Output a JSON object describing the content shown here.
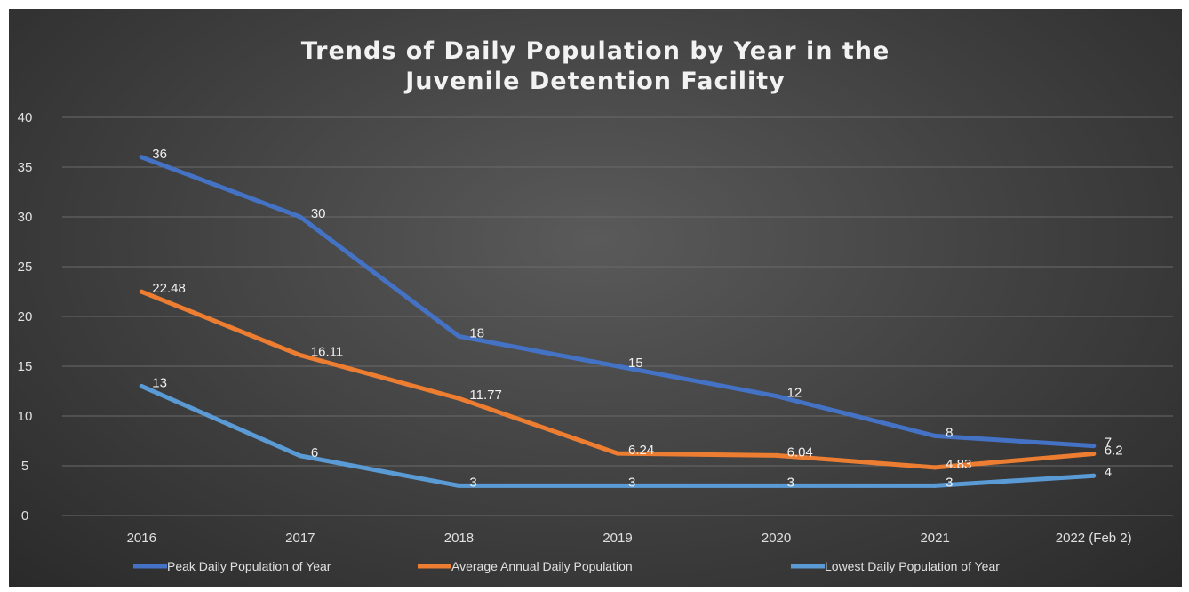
{
  "chart_data": {
    "type": "line",
    "title": "Trends of Daily Population by Year in the Juvenile Detention Facility",
    "title_lines": [
      "Trends of Daily Population by Year in the",
      "Juvenile Detention Facility"
    ],
    "categories": [
      "2016",
      "2017",
      "2018",
      "2019",
      "2020",
      "2021",
      "2022 (Feb 2)"
    ],
    "yticks": [
      "0",
      "5",
      "10",
      "15",
      "20",
      "25",
      "30",
      "35",
      "40"
    ],
    "ylim": [
      0,
      40
    ],
    "grid": true,
    "legend_position": "bottom",
    "series": [
      {
        "name": "Peak Daily Population of Year",
        "color": "#4472c4",
        "values": [
          36,
          30,
          18,
          15,
          12,
          8,
          7
        ],
        "labels": [
          "36",
          "30",
          "18",
          "15",
          "12",
          "8",
          "7"
        ]
      },
      {
        "name": "Average Annual Daily Population",
        "color": "#ed7d31",
        "values": [
          22.48,
          16.11,
          11.77,
          6.24,
          6.04,
          4.83,
          6.2
        ],
        "labels": [
          "22.48",
          "16.11",
          "11.77",
          "6.24",
          "6.04",
          "4.83",
          "6.2"
        ]
      },
      {
        "name": "Lowest Daily Population of Year",
        "color": "#5b9bd5",
        "values": [
          13,
          6,
          3,
          3,
          3,
          3,
          4
        ],
        "labels": [
          "13",
          "6",
          "3",
          "3",
          "3",
          "3",
          "4"
        ]
      }
    ]
  }
}
